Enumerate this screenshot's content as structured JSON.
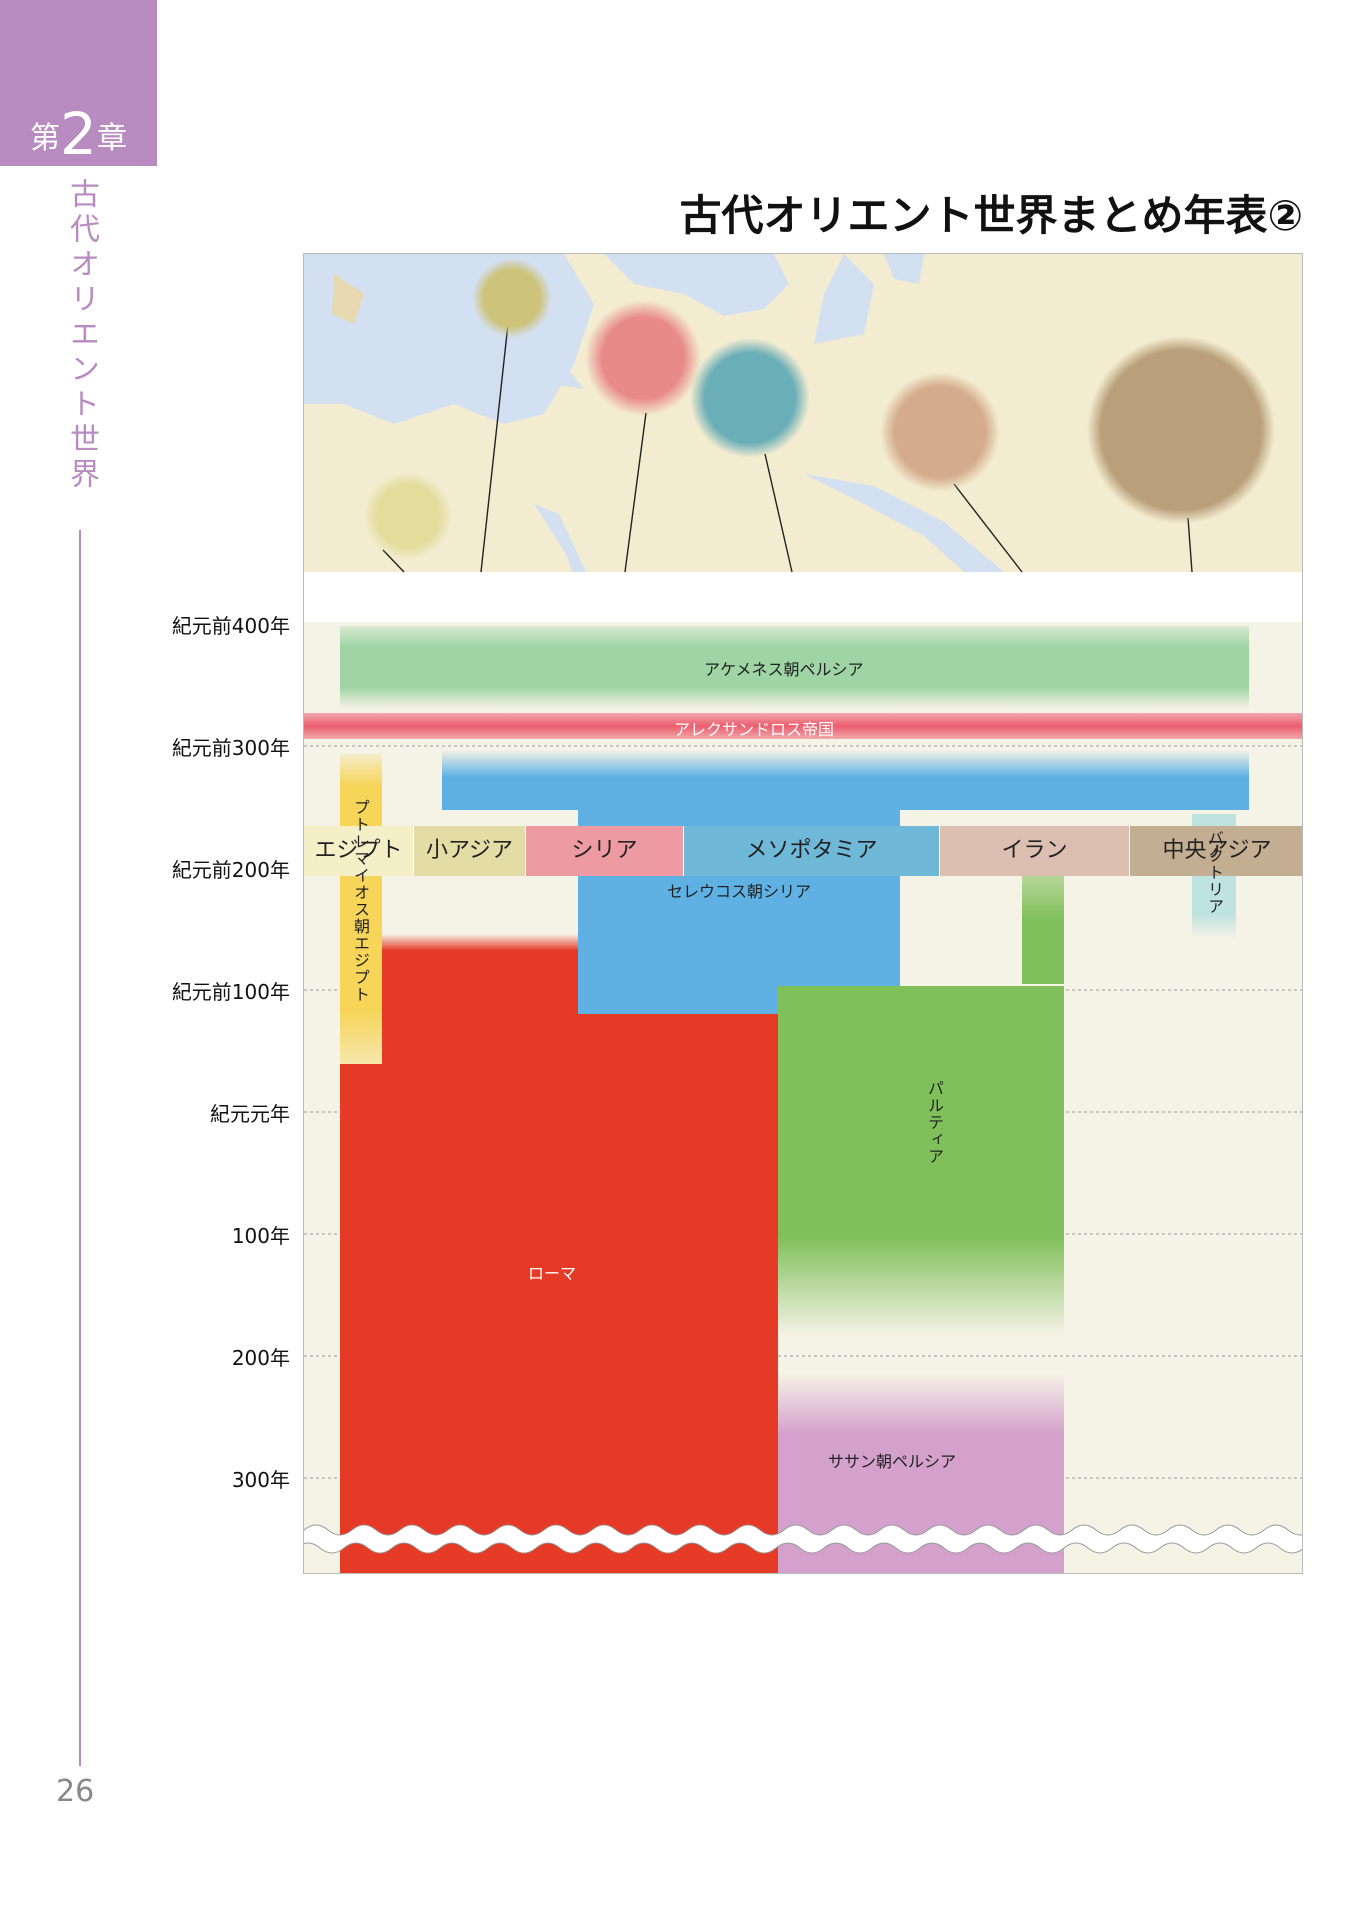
{
  "chapter": {
    "prefix": "第",
    "number": "2",
    "suffix": "章"
  },
  "side_title": "古代オリエント世界",
  "page_number": "26",
  "title": "古代オリエント世界まとめ年表②",
  "regions": [
    {
      "label": "エジプト",
      "color": "#f5efc8"
    },
    {
      "label": "小アジア",
      "color": "#e3dca4"
    },
    {
      "label": "シリア",
      "color": "#ee9aa3"
    },
    {
      "label": "メソポタミア",
      "color": "#6fb8d8"
    },
    {
      "label": "イラン",
      "color": "#dcbfb0"
    },
    {
      "label": "中央アジア",
      "color": "#c4ae92"
    }
  ],
  "years": [
    "紀元前400年",
    "紀元前300年",
    "紀元前200年",
    "紀元前100年",
    "紀元元年",
    "100年",
    "200年",
    "300年"
  ],
  "empires": {
    "achaemenid": "アケメネス朝ペルシア",
    "alexander": "アレクサンドロス帝国",
    "ptolemaic": "プトレマイオス朝エジプト",
    "seleucid": "セレウコス朝シリア",
    "bactria": "バクトリア",
    "parthia": "パルティア",
    "rome": "ローマ",
    "sasanian": "ササン朝ペルシア"
  },
  "colors": {
    "achaemenid": "#9fd4a4",
    "alexander": "#ec5d6f",
    "seleucid": "#5fb1e4",
    "rome": "#e53a26",
    "parthia": "#80c05a",
    "sasanian": "#d4a0cc",
    "ptolemaic": "#f6d558",
    "map_land": "#f3ecd0",
    "map_sea": "#c9d8ee"
  }
}
